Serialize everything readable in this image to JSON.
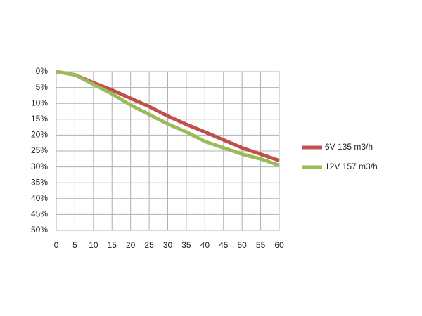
{
  "chart_data": {
    "type": "line",
    "x": [
      0,
      5,
      10,
      15,
      20,
      25,
      30,
      35,
      40,
      45,
      50,
      55,
      60
    ],
    "series": [
      {
        "name": "6V 135 m3/h",
        "color": "#c0504d",
        "values": [
          0,
          1,
          3.5,
          5.8,
          8.4,
          11,
          14,
          16.6,
          19,
          21.5,
          24,
          26,
          28
        ]
      },
      {
        "name": "12V 157 m3/h",
        "color": "#9bbb59",
        "values": [
          0,
          1,
          4,
          7,
          10.5,
          13.5,
          16.5,
          19,
          22,
          24,
          26,
          27.5,
          29.5
        ]
      }
    ],
    "xlim": [
      0,
      60
    ],
    "xticks": [
      0,
      5,
      10,
      15,
      20,
      25,
      30,
      35,
      40,
      45,
      50,
      55,
      60
    ],
    "ylim": [
      0,
      50
    ],
    "y_inverted": true,
    "yticks": [
      {
        "value": 0,
        "label": "0%"
      },
      {
        "value": 5,
        "label": "5%"
      },
      {
        "value": 10,
        "label": "10%"
      },
      {
        "value": 15,
        "label": "15%"
      },
      {
        "value": 20,
        "label": "20%"
      },
      {
        "value": 25,
        "label": "25%"
      },
      {
        "value": 30,
        "label": "30%"
      },
      {
        "value": 35,
        "label": "35%"
      },
      {
        "value": 40,
        "label": "40%"
      },
      {
        "value": 45,
        "label": "45%"
      },
      {
        "value": 50,
        "label": "50%"
      }
    ],
    "grid": true,
    "legend": "right"
  }
}
